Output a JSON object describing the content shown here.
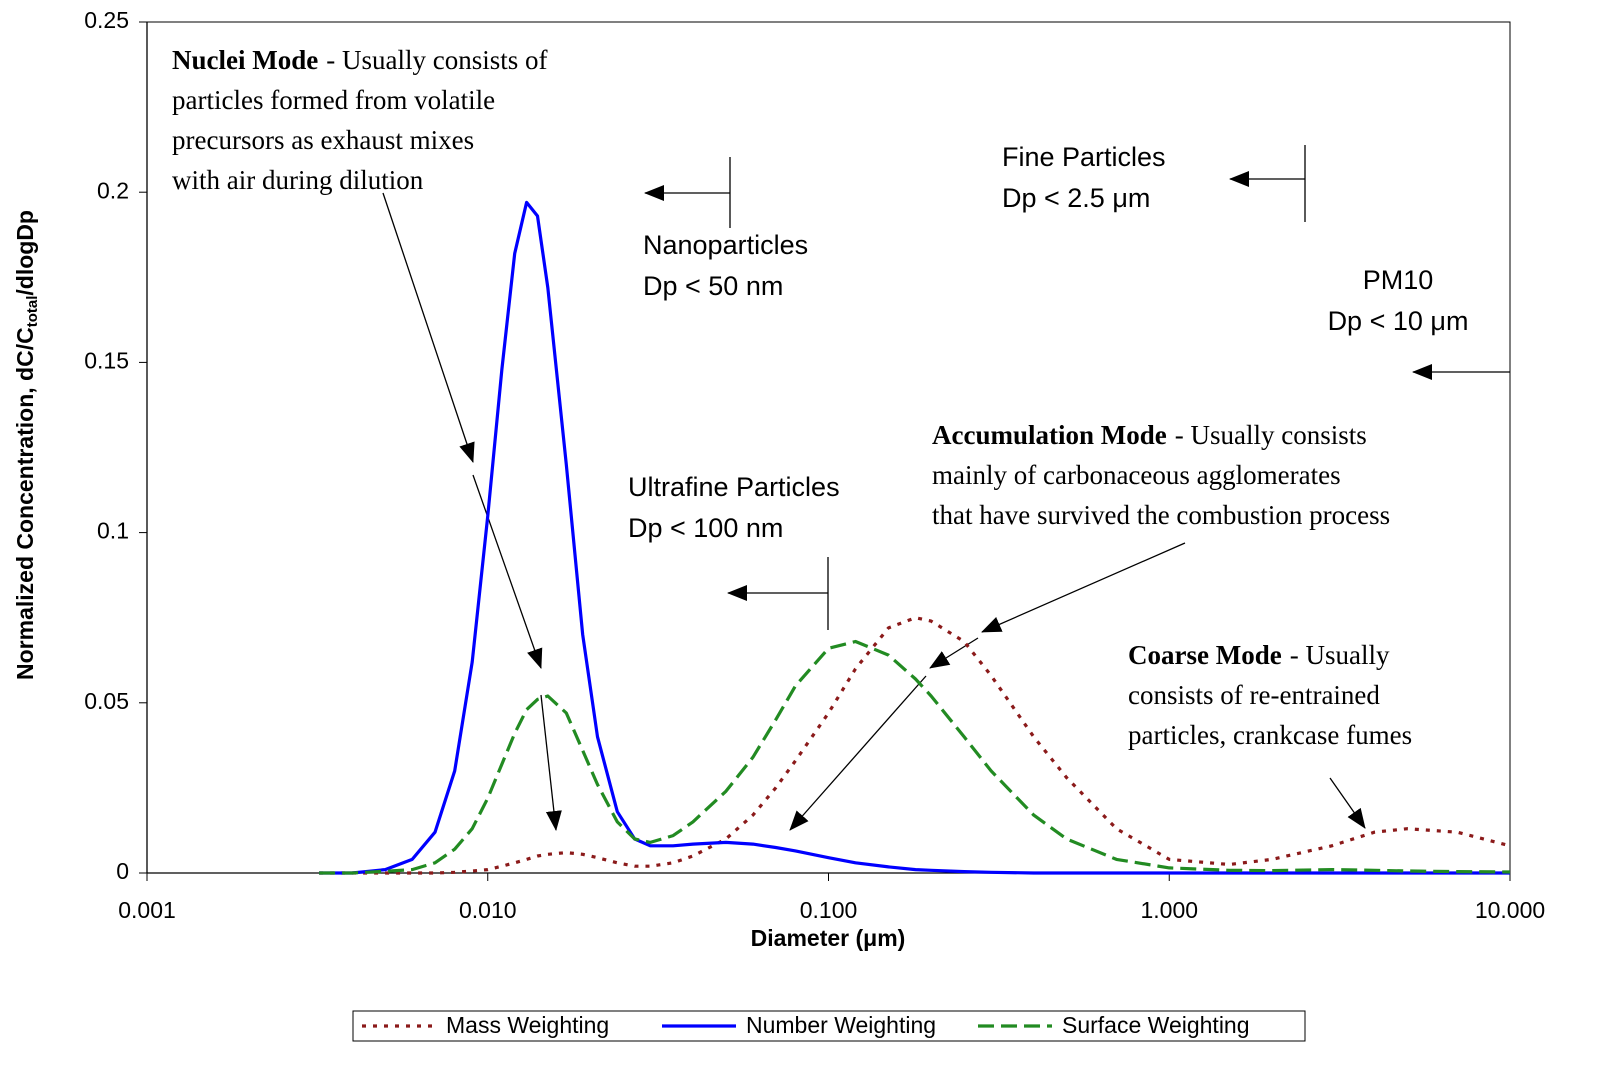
{
  "chart_data": {
    "type": "line",
    "xlabel": "Diameter (μm)",
    "ylabel": [
      "Normalized Concentration, dC/C",
      "total",
      "/dlogDp"
    ],
    "x_log": true,
    "x": [
      0.0032,
      0.004,
      0.005,
      0.006,
      0.007,
      0.008,
      0.009,
      0.01,
      0.011,
      0.012,
      0.013,
      0.014,
      0.015,
      0.017,
      0.019,
      0.021,
      0.024,
      0.027,
      0.03,
      0.035,
      0.04,
      0.05,
      0.06,
      0.07,
      0.08,
      0.1,
      0.12,
      0.15,
      0.18,
      0.2,
      0.25,
      0.3,
      0.4,
      0.5,
      0.7,
      1,
      1.5,
      2,
      3,
      4,
      5,
      7,
      10
    ],
    "series": [
      {
        "name": "Mass Weighting",
        "color": "#8b1a1a",
        "dash": "4 7",
        "values": [
          0,
          0,
          0,
          0,
          0,
          0.0002,
          0.0006,
          0.001,
          0.002,
          0.003,
          0.004,
          0.005,
          0.0055,
          0.006,
          0.0055,
          0.0045,
          0.003,
          0.002,
          0.002,
          0.003,
          0.005,
          0.01,
          0.017,
          0.025,
          0.033,
          0.047,
          0.06,
          0.072,
          0.075,
          0.074,
          0.068,
          0.058,
          0.04,
          0.028,
          0.013,
          0.004,
          0.0025,
          0.004,
          0.008,
          0.012,
          0.013,
          0.012,
          0.008
        ]
      },
      {
        "name": "Number Weighting",
        "color": "#0000ff",
        "dash": "none",
        "values": [
          0,
          0,
          0.001,
          0.004,
          0.012,
          0.03,
          0.062,
          0.105,
          0.148,
          0.182,
          0.197,
          0.193,
          0.172,
          0.12,
          0.07,
          0.04,
          0.018,
          0.01,
          0.008,
          0.008,
          0.0085,
          0.009,
          0.0085,
          0.0075,
          0.0065,
          0.0045,
          0.003,
          0.0018,
          0.001,
          0.0008,
          0.0004,
          0.0002,
          0,
          0,
          0,
          0,
          0,
          0,
          0,
          0,
          0,
          0,
          0
        ]
      },
      {
        "name": "Surface Weighting",
        "color": "#228b22",
        "dash": "16 7",
        "values": [
          0,
          0,
          0.0005,
          0.001,
          0.003,
          0.007,
          0.013,
          0.022,
          0.032,
          0.041,
          0.048,
          0.051,
          0.052,
          0.047,
          0.036,
          0.026,
          0.015,
          0.01,
          0.009,
          0.011,
          0.015,
          0.024,
          0.034,
          0.045,
          0.055,
          0.066,
          0.068,
          0.064,
          0.057,
          0.052,
          0.04,
          0.03,
          0.017,
          0.01,
          0.004,
          0.0015,
          0.0008,
          0.0007,
          0.001,
          0.0008,
          0.0006,
          0.0004,
          0.0003
        ]
      }
    ],
    "xlim": [
      0.001,
      10
    ],
    "xticks": [
      {
        "value": 0.001,
        "label": "0.001"
      },
      {
        "value": 0.01,
        "label": "0.010"
      },
      {
        "value": 0.1,
        "label": "0.100"
      },
      {
        "value": 1,
        "label": "1.000"
      },
      {
        "value": 10,
        "label": "10.000"
      }
    ],
    "ylim": [
      0,
      0.25
    ],
    "yticks": [
      0,
      0.05,
      0.1,
      0.15,
      0.2,
      0.25
    ],
    "legend": "bottom",
    "annotations": [
      {
        "title": "Nuclei Mode",
        "text": [
          "- Usually consists of",
          "particles formed from volatile",
          "precursors as exhaust mixes",
          "with air during dilution"
        ]
      },
      {
        "title": "Accumulation Mode",
        "text": [
          "- Usually consists",
          "mainly of carbonaceous agglomerates",
          "that have survived the combustion process"
        ]
      },
      {
        "title": "Coarse Mode",
        "text": [
          "- Usually",
          "consists of re-entrained",
          "particles, crankcase fumes"
        ]
      }
    ],
    "size_ranges": [
      {
        "name": "Nanoparticles",
        "limit": "Dp < 50 nm"
      },
      {
        "name": "Ultrafine Particles",
        "limit": "Dp < 100 nm"
      },
      {
        "name": "Fine Particles",
        "limit": "Dp < 2.5 μm"
      },
      {
        "name": "PM10",
        "limit": "Dp < 10 μm"
      }
    ]
  }
}
